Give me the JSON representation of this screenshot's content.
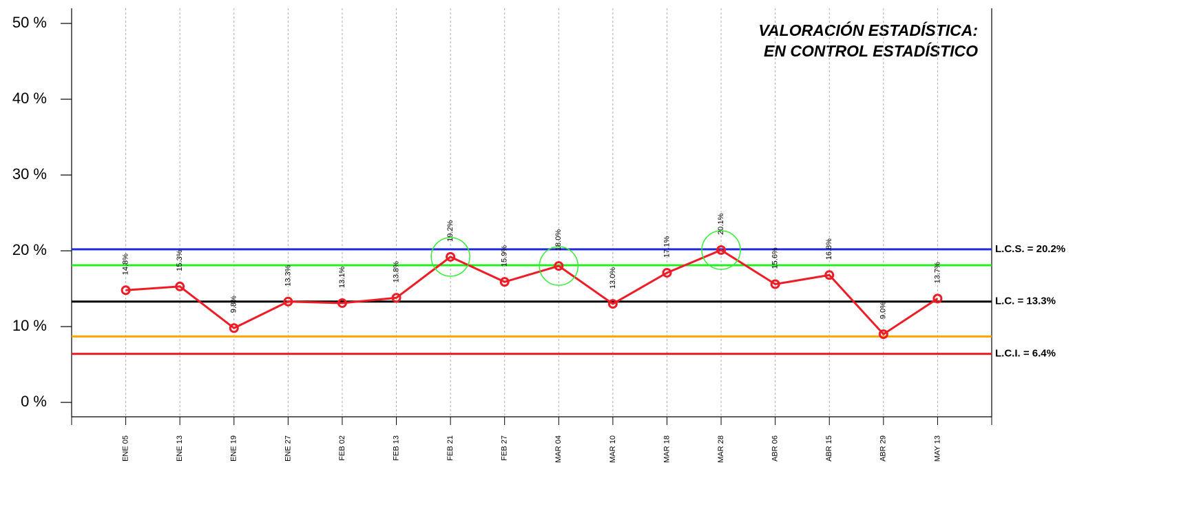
{
  "chart_data": {
    "type": "line",
    "title": [
      "VALORACIÓN ESTADÍSTICA:",
      "EN CONTROL ESTADÍSTICO"
    ],
    "categories": [
      "ENE 05",
      "ENE 13",
      "ENE 19",
      "ENE 27",
      "FEB 02",
      "FEB 13",
      "FEB 21",
      "FEB 27",
      "MAR 04",
      "MAR 10",
      "MAR 18",
      "MAR 28",
      "ABR 06",
      "ABR 15",
      "ABR 29",
      "MAY 13"
    ],
    "series": [
      {
        "color": "#ee1c25",
        "values": [
          14.8,
          15.3,
          9.8,
          13.3,
          13.1,
          13.8,
          19.2,
          15.9,
          18.0,
          13.0,
          17.1,
          20.1,
          15.6,
          16.8,
          9.0,
          13.7
        ],
        "value_labels": [
          "14.8%",
          "15.3%",
          "9.8%",
          "13.3%",
          "13.1%",
          "13.8%",
          "19.2%",
          "15.9%",
          "18.0%",
          "13.0%",
          "17.1%",
          "20.1%",
          "15.6%",
          "16.8%",
          "9.0%",
          "13.7%"
        ]
      }
    ],
    "highlighted": [
      6,
      8,
      11
    ],
    "highlight_color": "#33ee33",
    "reference_lines": [
      {
        "value": 20.2,
        "label": "L.C.S. = 20.2%",
        "color": "#1f2bdc"
      },
      {
        "value": 18.1,
        "color": "#22ee22"
      },
      {
        "value": 13.3,
        "label": "L.C. = 13.3%",
        "color": "#000000"
      },
      {
        "value": 8.7,
        "color": "#ffa500"
      },
      {
        "value": 6.4,
        "label": "L.C.I. = 6.4%",
        "color": "#ee1c25"
      }
    ],
    "ylim": [
      -1.9,
      52
    ],
    "yticks": [
      {
        "value": 0,
        "label": "0 %"
      },
      {
        "value": 10,
        "label": "10 %"
      },
      {
        "value": 20,
        "label": "20 %"
      },
      {
        "value": 30,
        "label": "30 %"
      },
      {
        "value": 40,
        "label": "40 %"
      },
      {
        "value": 50,
        "label": "50 %"
      }
    ],
    "grid": true
  }
}
